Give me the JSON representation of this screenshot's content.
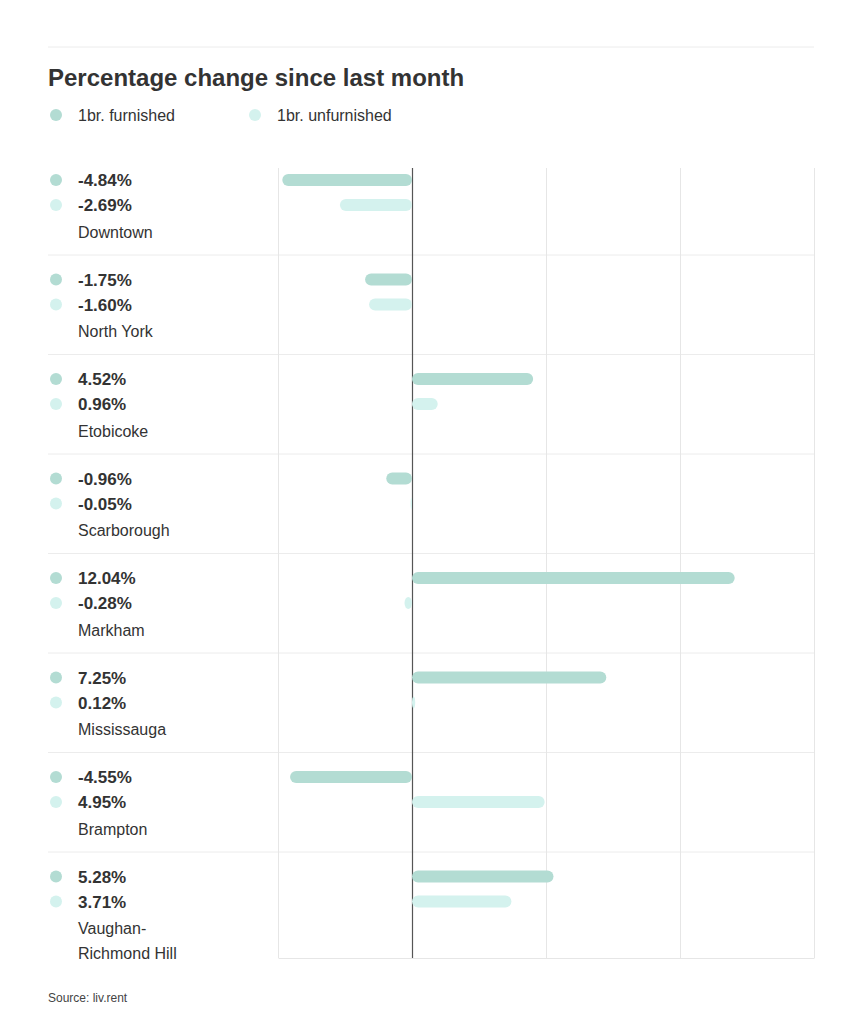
{
  "chart_data": {
    "type": "bar",
    "orientation": "horizontal",
    "title": "Percentage change since last month",
    "source": "Source: liv.rent",
    "categories": [
      "Downtown",
      "North York",
      "Etobicoke",
      "Scarborough",
      "Markham",
      "Mississauga",
      "Brampton",
      "Vaughan-Richmond Hill"
    ],
    "series": [
      {
        "name": "1br. furnished",
        "color": "#b3dcd3",
        "values": [
          -4.84,
          -1.75,
          4.52,
          -0.96,
          12.04,
          7.25,
          -4.55,
          5.28
        ],
        "value_labels": [
          "-4.84%",
          "-1.75%",
          "4.52%",
          "-0.96%",
          "12.04%",
          "7.25%",
          "-4.55%",
          "5.28%"
        ]
      },
      {
        "name": "1br. unfurnished",
        "color": "#d4f2ee",
        "values": [
          -2.69,
          -1.6,
          0.96,
          -0.05,
          -0.28,
          0.12,
          4.95,
          3.71
        ],
        "value_labels": [
          "-2.69%",
          "-1.60%",
          "0.96%",
          "-0.05%",
          "-0.28%",
          "0.12%",
          "4.95%",
          "3.71%"
        ]
      }
    ],
    "xlim": [
      -5,
      15
    ],
    "xticks": [
      -5,
      0,
      5,
      10,
      15
    ],
    "tick_labels": false,
    "grid": true,
    "legend": "top-left",
    "data_labels": true
  }
}
